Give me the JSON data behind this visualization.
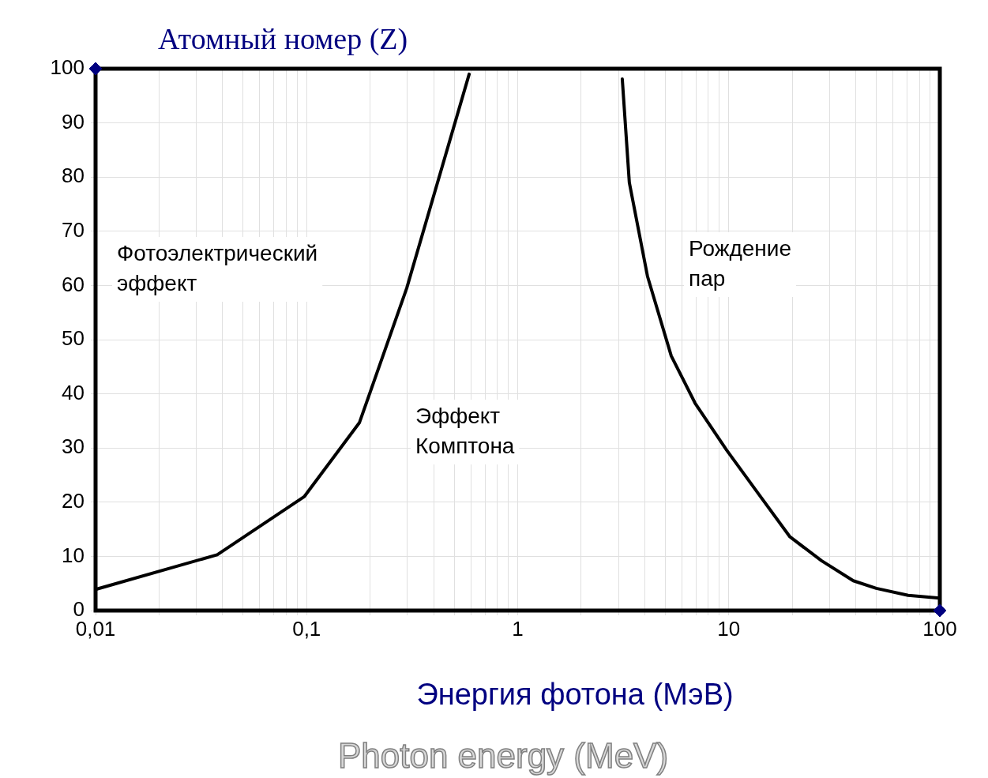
{
  "chart_data": {
    "type": "line",
    "ylabel": "Атомный номер (Z)",
    "xlabel": "Энергия фотона (МэВ)",
    "log": "x",
    "grid": true,
    "legend": false,
    "xlim": [
      0.01,
      100
    ],
    "ylim": [
      0,
      100
    ],
    "xticks": [
      {
        "value": 0.01,
        "label": "0,01"
      },
      {
        "value": 0.02,
        "label": null
      },
      {
        "value": 0.03,
        "label": null
      },
      {
        "value": 0.04,
        "label": null
      },
      {
        "value": 0.05,
        "label": null
      },
      {
        "value": 0.06,
        "label": null
      },
      {
        "value": 0.07,
        "label": null
      },
      {
        "value": 0.08,
        "label": null
      },
      {
        "value": 0.09,
        "label": null
      },
      {
        "value": 0.1,
        "label": "0,1"
      },
      {
        "value": 0.2,
        "label": null
      },
      {
        "value": 0.3,
        "label": null
      },
      {
        "value": 0.4,
        "label": null
      },
      {
        "value": 0.5,
        "label": null
      },
      {
        "value": 0.6,
        "label": null
      },
      {
        "value": 0.7,
        "label": null
      },
      {
        "value": 0.8,
        "label": null
      },
      {
        "value": 0.9,
        "label": null
      },
      1,
      {
        "value": 2,
        "label": null
      },
      {
        "value": 3,
        "label": null
      },
      {
        "value": 4,
        "label": null
      },
      {
        "value": 5,
        "label": null
      },
      {
        "value": 6,
        "label": null
      },
      {
        "value": 7,
        "label": null
      },
      {
        "value": 8,
        "label": null
      },
      {
        "value": 9,
        "label": null
      },
      10,
      {
        "value": 20,
        "label": null
      },
      {
        "value": 30,
        "label": null
      },
      {
        "value": 40,
        "label": null
      },
      {
        "value": 50,
        "label": null
      },
      {
        "value": 60,
        "label": null
      },
      {
        "value": 70,
        "label": null
      },
      {
        "value": 80,
        "label": null
      },
      {
        "value": 90,
        "label": null
      },
      100
    ],
    "yticks": [
      0,
      10,
      20,
      30,
      40,
      50,
      60,
      70,
      80,
      90,
      100
    ],
    "annotations": [
      "Фотоэлектрический\nэффект",
      "Эффект\nКомптона",
      "Рождение\nпар",
      "Photon energy (MeV)"
    ],
    "series": [
      {
        "type": "line",
        "color": "#000000",
        "marker": "none",
        "x": [
          0.01,
          0.0377,
          0.0973,
          0.178,
          0.298,
          0.589
        ],
        "values": [
          3.9,
          10.3,
          21,
          34.7,
          59.5,
          99
        ]
      },
      {
        "type": "line",
        "color": "#000000",
        "marker": "none",
        "x": [
          3.13,
          3.38,
          4.12,
          5.34,
          6.92,
          9.77,
          13.8,
          19.5,
          27.5,
          38.9,
          50,
          70.8,
          100
        ],
        "values": [
          98.1,
          79,
          61.7,
          47,
          38.3,
          29.6,
          21.6,
          13.6,
          9.2,
          5.5,
          4.1,
          2.8,
          2.3
        ]
      },
      {
        "type": "scatter",
        "color": "#000080",
        "marker": "diamond",
        "x": [
          0.01,
          100
        ],
        "values": [
          100,
          0
        ]
      }
    ]
  }
}
